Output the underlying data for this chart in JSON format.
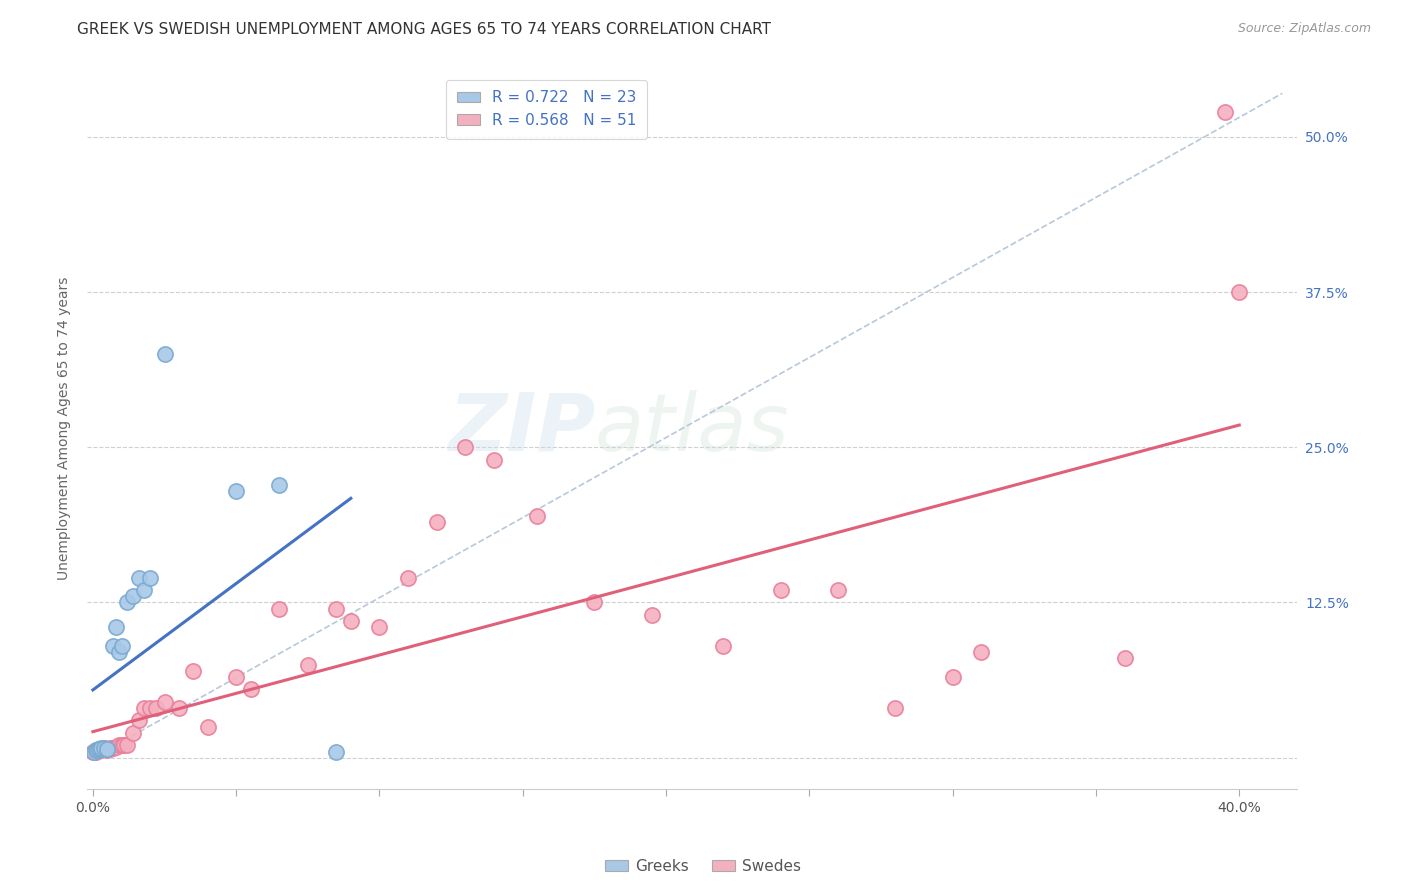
{
  "title": "GREEK VS SWEDISH UNEMPLOYMENT AMONG AGES 65 TO 74 YEARS CORRELATION CHART",
  "source": "Source: ZipAtlas.com",
  "ylabel": "Unemployment Among Ages 65 to 74 years",
  "y_ticks": [
    0.0,
    0.125,
    0.25,
    0.375,
    0.5
  ],
  "y_tick_labels_right": [
    "",
    "12.5%",
    "25.0%",
    "37.5%",
    "50.0%"
  ],
  "xlim": [
    -0.002,
    0.42
  ],
  "ylim": [
    -0.025,
    0.555
  ],
  "background_color": "#ffffff",
  "grid_color": "#d0d0d0",
  "watermark_zip": "ZIP",
  "watermark_atlas": "atlas",
  "greeks_color": "#a8c8e8",
  "swedes_color": "#f5b0c0",
  "greeks_edge_color": "#7aaad0",
  "swedes_edge_color": "#e8809a",
  "greeks_line_color": "#4472c4",
  "swedes_line_color": "#e0607a",
  "dashed_line_color": "#b8c8d8",
  "legend_greek_R": "0.722",
  "legend_greek_N": "23",
  "legend_swede_R": "0.568",
  "legend_swede_N": "51",
  "greeks_x": [
    0.0005,
    0.001,
    0.0015,
    0.002,
    0.002,
    0.003,
    0.003,
    0.004,
    0.005,
    0.005,
    0.007,
    0.008,
    0.009,
    0.01,
    0.012,
    0.014,
    0.016,
    0.018,
    0.02,
    0.025,
    0.05,
    0.065,
    0.085
  ],
  "greeks_y": [
    0.005,
    0.006,
    0.006,
    0.007,
    0.007,
    0.007,
    0.008,
    0.008,
    0.007,
    0.007,
    0.09,
    0.105,
    0.085,
    0.09,
    0.125,
    0.13,
    0.145,
    0.135,
    0.145,
    0.325,
    0.215,
    0.22,
    0.005
  ],
  "swedes_x": [
    0.0,
    0.001,
    0.001,
    0.002,
    0.002,
    0.003,
    0.003,
    0.004,
    0.004,
    0.005,
    0.005,
    0.006,
    0.006,
    0.007,
    0.008,
    0.009,
    0.01,
    0.011,
    0.012,
    0.014,
    0.016,
    0.018,
    0.02,
    0.022,
    0.025,
    0.03,
    0.035,
    0.04,
    0.05,
    0.055,
    0.065,
    0.075,
    0.085,
    0.09,
    0.1,
    0.11,
    0.12,
    0.13,
    0.14,
    0.155,
    0.175,
    0.195,
    0.22,
    0.24,
    0.26,
    0.28,
    0.3,
    0.31,
    0.36,
    0.395,
    0.4
  ],
  "swedes_y": [
    0.005,
    0.005,
    0.006,
    0.006,
    0.007,
    0.006,
    0.007,
    0.007,
    0.008,
    0.006,
    0.007,
    0.007,
    0.008,
    0.008,
    0.009,
    0.01,
    0.01,
    0.01,
    0.01,
    0.02,
    0.03,
    0.04,
    0.04,
    0.04,
    0.045,
    0.04,
    0.07,
    0.025,
    0.065,
    0.055,
    0.12,
    0.075,
    0.12,
    0.11,
    0.105,
    0.145,
    0.19,
    0.25,
    0.24,
    0.195,
    0.125,
    0.115,
    0.09,
    0.135,
    0.135,
    0.04,
    0.065,
    0.085,
    0.08,
    0.52,
    0.375
  ],
  "title_fontsize": 11,
  "source_fontsize": 9,
  "legend_fontsize": 11,
  "axis_label_fontsize": 10,
  "tick_fontsize": 10
}
